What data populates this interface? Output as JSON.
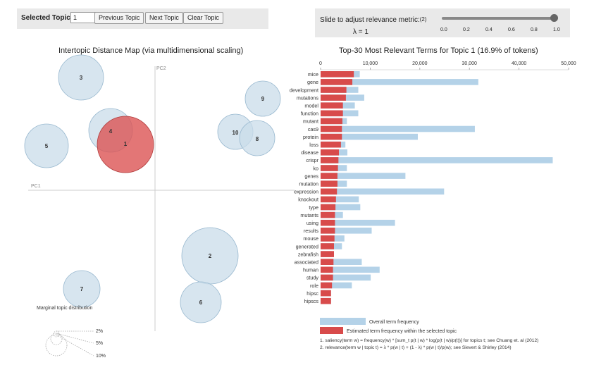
{
  "topbar": {
    "selected_topic_label": "Selected Topic:",
    "selected_topic_value": "1",
    "prev_label": "Previous Topic",
    "next_label": "Next Topic",
    "clear_label": "Clear Topic"
  },
  "slider": {
    "label": "Slide to adjust relevance metric:",
    "footnote": "(2)",
    "lambda_text": "λ = 1",
    "value": 1.0,
    "ticks": [
      "0.0",
      "0.2",
      "0.4",
      "0.6",
      "0.8",
      "1.0"
    ]
  },
  "left": {
    "title": "Intertopic Distance Map (via multidimensional scaling)",
    "pc1": "PC1",
    "pc2": "PC2",
    "marginal_title": "Marginal topic distribution",
    "marginal_labels": [
      "2%",
      "5%",
      "10%"
    ],
    "topics": [
      {
        "id": "1",
        "selected": true
      },
      {
        "id": "2"
      },
      {
        "id": "3"
      },
      {
        "id": "4"
      },
      {
        "id": "5"
      },
      {
        "id": "6"
      },
      {
        "id": "7"
      },
      {
        "id": "8"
      },
      {
        "id": "9"
      },
      {
        "id": "10"
      }
    ]
  },
  "right": {
    "title": "Top-30 Most Relevant Terms for Topic 1 (16.9% of tokens)",
    "legend_overall": "Overall term frequency",
    "legend_estimated": "Estimated term frequency within the selected topic",
    "note1": "1. saliency(term w) = frequency(w) * [sum_t p(t | w) * log(p(t | w)/p(t))] for topics t; see Chuang et. al (2012)",
    "note2": "2. relevance(term w | topic t) = λ * p(w | t) + (1 - λ) * p(w | t)/p(w); see Sievert & Shirley (2014)"
  },
  "colors": {
    "overall": "#b4d2e8",
    "estimated": "#d84b4b",
    "bubble": "#c9dcea",
    "bubble_stroke": "#98b8cf",
    "selected": "#dc5454"
  },
  "chart_data": {
    "type": "bar",
    "title": "Top-30 Most Relevant Terms for Topic 1 (16.9% of tokens)",
    "xlim": [
      0,
      50000
    ],
    "xticks": [
      "0",
      "10,000",
      "20,000",
      "30,000",
      "40,000",
      "50,000"
    ],
    "categories": [
      "mice",
      "gene",
      "development",
      "mutations",
      "model",
      "function",
      "mutant",
      "cas9",
      "protein",
      "loss",
      "disease",
      "crispr",
      "ko",
      "genes",
      "mutation",
      "expression",
      "knockout",
      "type",
      "mutants",
      "using",
      "results",
      "mouse",
      "generated",
      "zebrafish",
      "associated",
      "human",
      "study",
      "role",
      "hipsc",
      "hipscs"
    ],
    "series": [
      {
        "name": "Overall term frequency",
        "values": [
          7900,
          31800,
          7600,
          8800,
          6900,
          7600,
          5300,
          31100,
          19600,
          5000,
          5400,
          46800,
          5300,
          17100,
          5300,
          24900,
          7700,
          8000,
          4500,
          15000,
          10300,
          4800,
          4300,
          2200,
          8300,
          11900,
          10100,
          6300,
          2100,
          2100
        ]
      },
      {
        "name": "Estimated term frequency within the selected topic",
        "values": [
          6700,
          6400,
          5200,
          5100,
          4500,
          4500,
          4400,
          4300,
          4300,
          4100,
          3700,
          3600,
          3500,
          3400,
          3400,
          3300,
          3100,
          3000,
          2900,
          2900,
          2900,
          2800,
          2700,
          2700,
          2600,
          2500,
          2500,
          2300,
          2100,
          2100
        ]
      }
    ]
  }
}
